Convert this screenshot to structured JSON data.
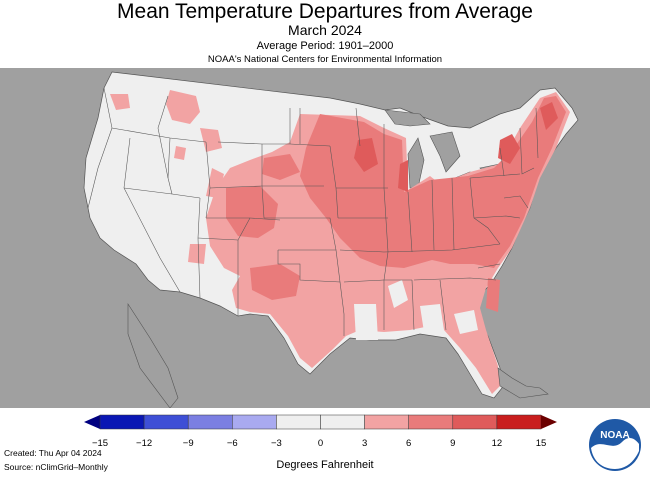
{
  "header": {
    "title": "Mean Temperature Departures from Average",
    "period": "March 2024",
    "base": "Average Period: 1901–2000",
    "source": "NOAA's National Centers for Environmental Information"
  },
  "legend": {
    "unit_label": "Degrees Fahrenheit",
    "ticks": [
      "−15",
      "−12",
      "−9",
      "−6",
      "−3",
      "0",
      "3",
      "6",
      "9",
      "12",
      "15"
    ],
    "colors": [
      "#0a17b4",
      "#3e4fd6",
      "#7b7fe2",
      "#a9aaf0",
      "#efefef",
      "#efefef",
      "#f2a3a3",
      "#e97b7b",
      "#df5b5b",
      "#c91e1e"
    ],
    "range": [
      -15,
      15
    ]
  },
  "footer": {
    "created": "Created: Thu Apr 04 2024",
    "source": "Source: nClimGrid–Monthly"
  },
  "logo": {
    "text": "NOAA"
  },
  "colors": {
    "background_land": "#a0a0a0",
    "near_normal": "#efefef",
    "warm_3_6": "#f2a3a3",
    "warm_6_9": "#e97b7b",
    "warm_9_12": "#df5b5b",
    "lakes": "#a0a0a0"
  }
}
